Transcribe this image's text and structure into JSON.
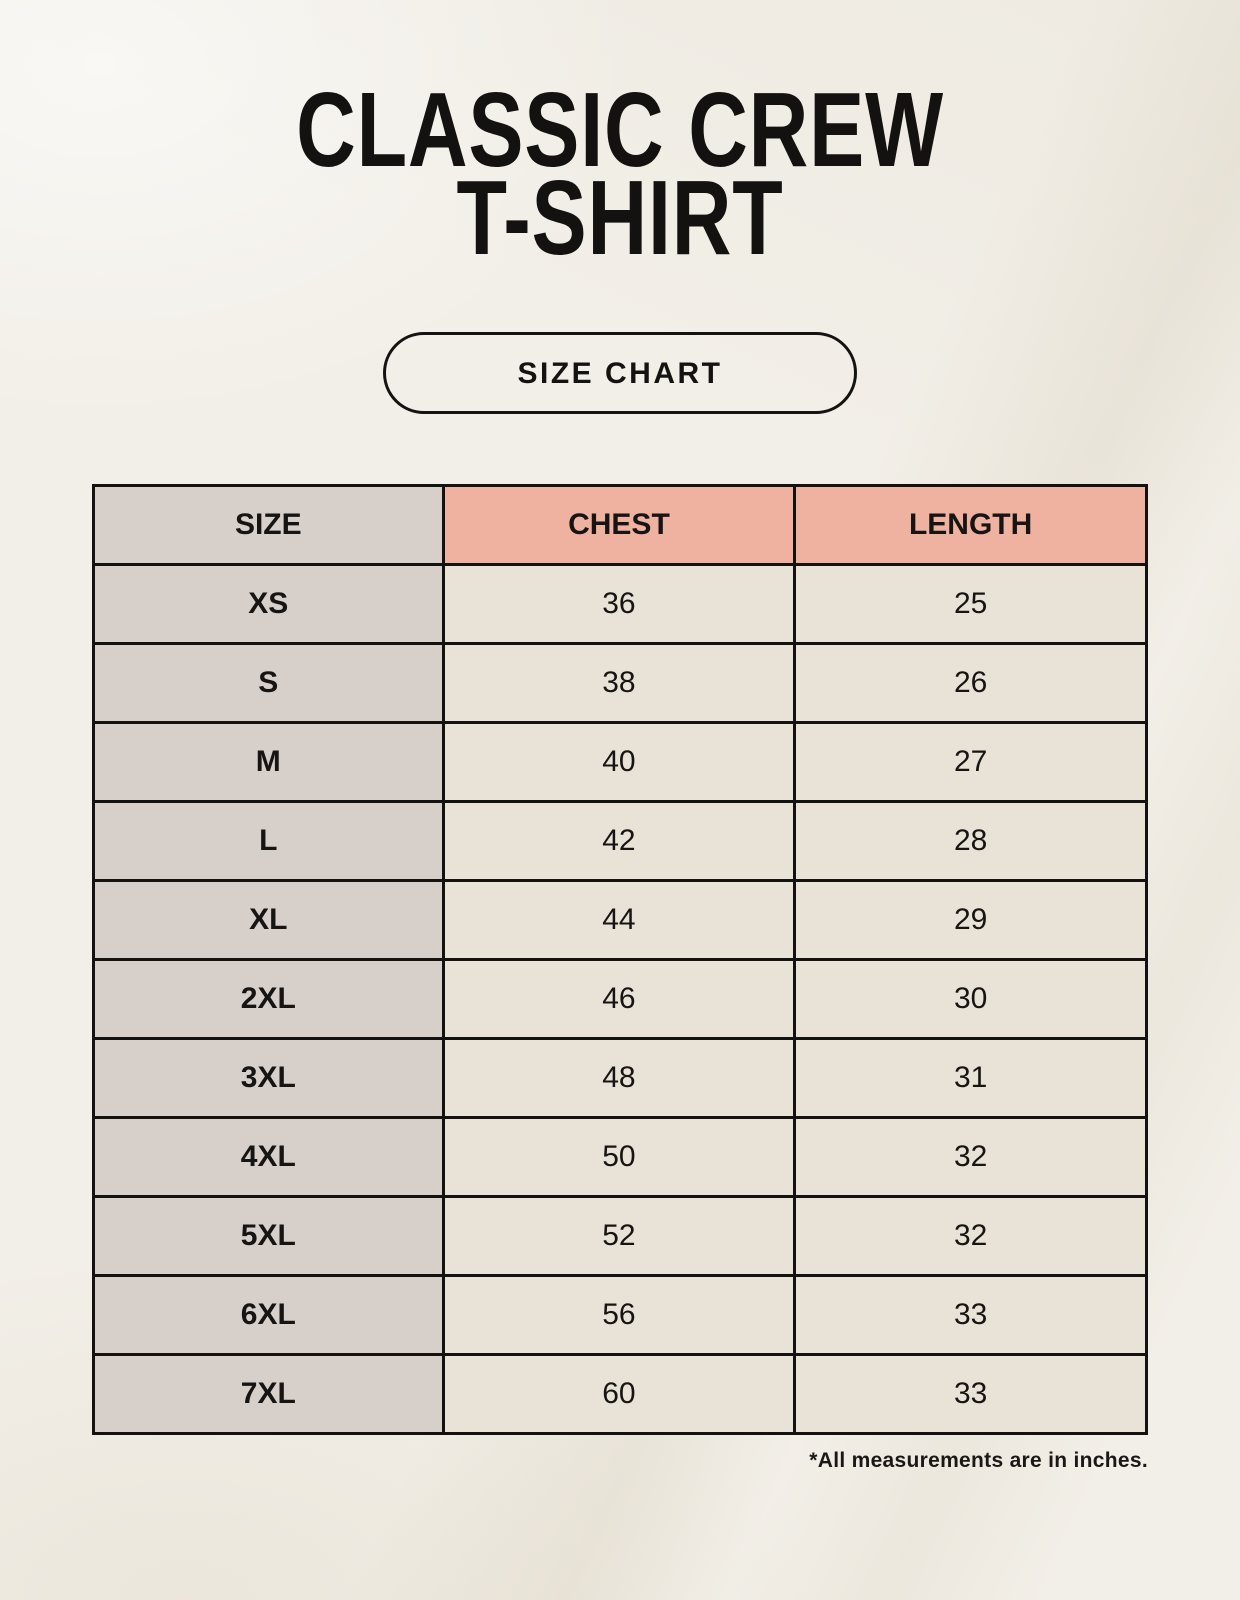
{
  "page": {
    "title_line1": "CLASSIC CREW",
    "title_line2": "T-SHIRT",
    "badge_label": "SIZE CHART",
    "footnote": "*All measurements are in inches."
  },
  "colors": {
    "page_background": "#f2efe8",
    "header_accent": "#efb2a0",
    "size_column": "#d7cfca",
    "data_cell": "#e9e2d6",
    "border": "#131211",
    "text": "#131211"
  },
  "chart_data": {
    "type": "table",
    "title": "CLASSIC CREW T-SHIRT",
    "subtitle": "SIZE CHART",
    "columns": [
      "SIZE",
      "CHEST",
      "LENGTH"
    ],
    "rows": [
      [
        "XS",
        "36",
        "25"
      ],
      [
        "S",
        "38",
        "26"
      ],
      [
        "M",
        "40",
        "27"
      ],
      [
        "L",
        "42",
        "28"
      ],
      [
        "XL",
        "44",
        "29"
      ],
      [
        "2XL",
        "46",
        "30"
      ],
      [
        "3XL",
        "48",
        "31"
      ],
      [
        "4XL",
        "50",
        "32"
      ],
      [
        "5XL",
        "52",
        "32"
      ],
      [
        "6XL",
        "56",
        "33"
      ],
      [
        "7XL",
        "60",
        "33"
      ]
    ],
    "units": "inches",
    "footnote": "*All measurements are in inches."
  }
}
